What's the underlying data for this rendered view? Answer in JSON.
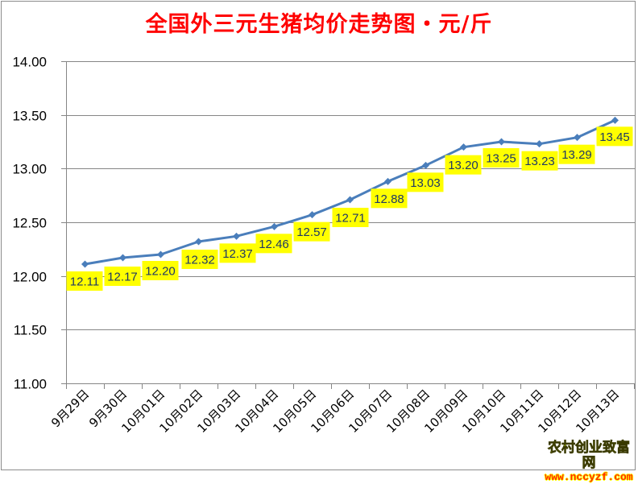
{
  "chart_data": {
    "type": "line",
    "title": "全国外三元生猪均价走势图・元/斤",
    "xlabel": "",
    "ylabel": "",
    "ylim": [
      11.0,
      14.0
    ],
    "yticks": [
      "14.00",
      "13.50",
      "13.00",
      "12.50",
      "12.00",
      "11.50",
      "11.00"
    ],
    "grid": true,
    "legend": "none",
    "categories": [
      "9月29日",
      "9月30日",
      "10月01日",
      "10月02日",
      "10月03日",
      "10月04日",
      "10月05日",
      "10月06日",
      "10月07日",
      "10月08日",
      "10月09日",
      "10月10日",
      "10月11日",
      "10月12日",
      "10月13日"
    ],
    "series": [
      {
        "name": "全国外三元生猪均价",
        "color": "#4a7ebb",
        "values": [
          12.11,
          12.17,
          12.2,
          12.32,
          12.37,
          12.46,
          12.57,
          12.71,
          12.88,
          13.03,
          13.2,
          13.25,
          13.23,
          13.29,
          13.45
        ],
        "labels": [
          "12.11",
          "12.17",
          "12.20",
          "12.32",
          "12.37",
          "12.46",
          "12.57",
          "12.71",
          "12.88",
          "13.03",
          "13.20",
          "13.25",
          "13.23",
          "13.29",
          "13.45"
        ]
      }
    ]
  },
  "style": {
    "title_color": "#ff0000",
    "line_color": "#4a7ebb",
    "label_bg": "#ffff00",
    "label_text": "#1f3864",
    "grid_color": "#868686"
  },
  "watermark": {
    "name": "农村创业致富网",
    "url": "www.nccyzf.com"
  }
}
